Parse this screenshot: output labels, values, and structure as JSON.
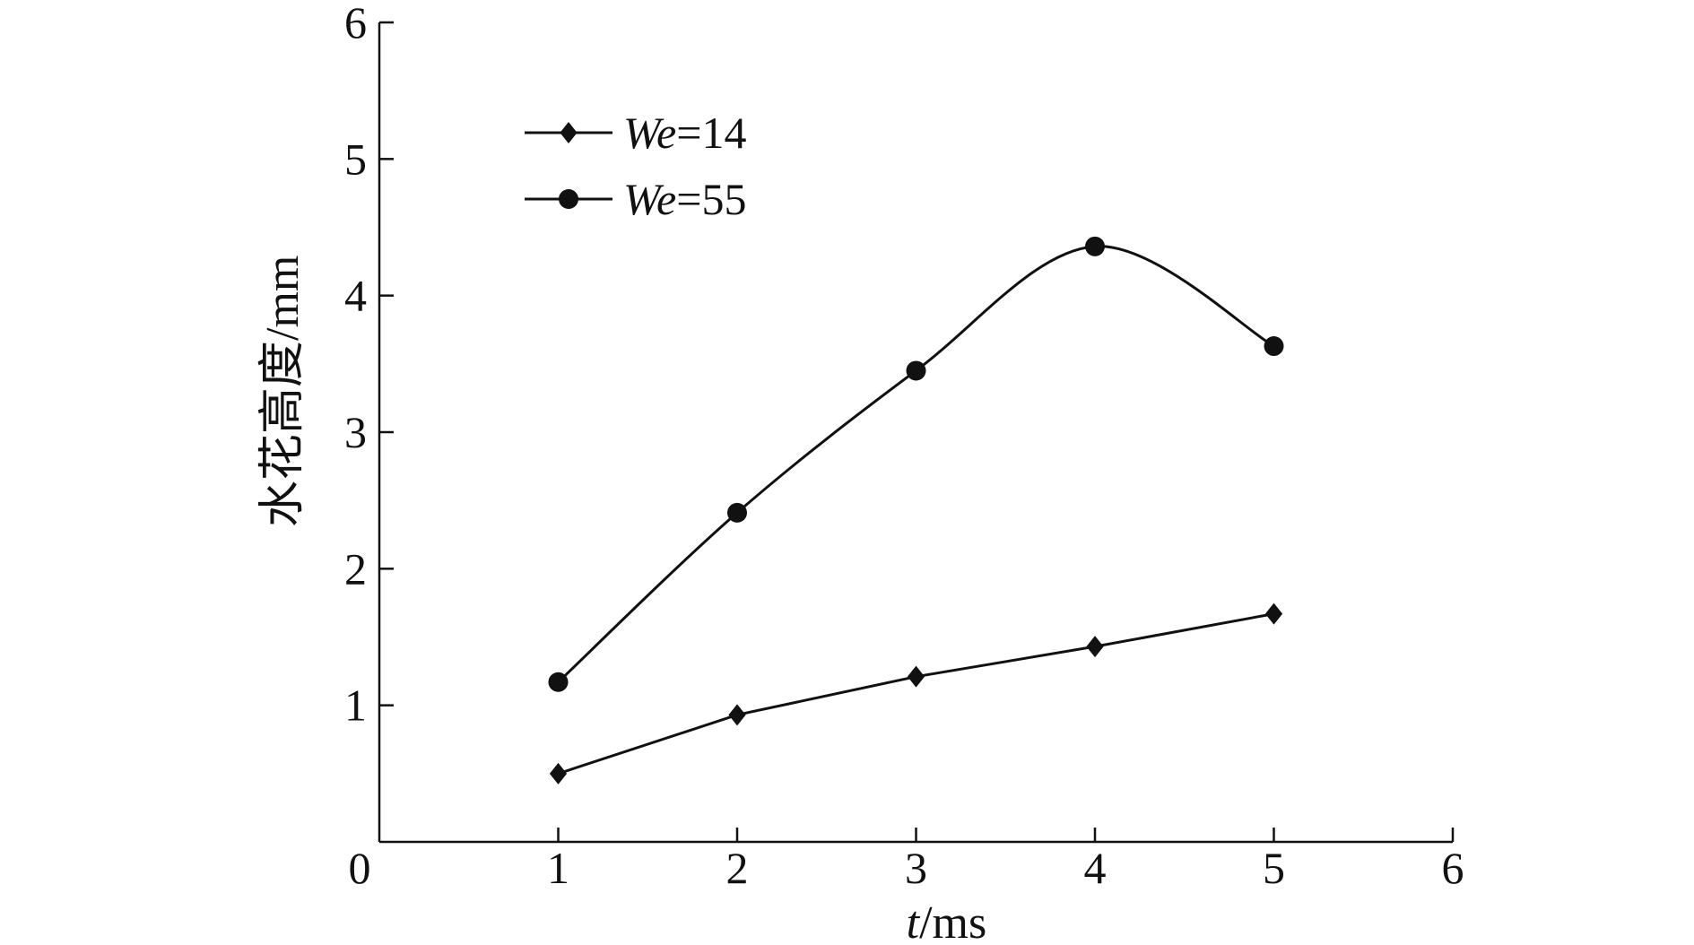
{
  "chart_data": {
    "type": "line",
    "title": "",
    "xlabel": {
      "italic": "t",
      "rest": "/ms"
    },
    "ylabel": "水花高度/mm",
    "xlim": [
      0,
      6
    ],
    "ylim": [
      0,
      6
    ],
    "x_ticks": [
      "0",
      "1",
      "2",
      "3",
      "4",
      "5",
      "6"
    ],
    "y_ticks": [
      "1",
      "2",
      "3",
      "4",
      "5",
      "6"
    ],
    "grid": false,
    "legend_position": "top-left",
    "x": [
      1,
      2,
      3,
      4,
      5
    ],
    "series": [
      {
        "name": {
          "italic": "We",
          "rest": "=14"
        },
        "marker": "diamond",
        "smooth": false,
        "values": [
          0.5,
          0.93,
          1.21,
          1.43,
          1.67
        ]
      },
      {
        "name": {
          "italic": "We",
          "rest": "=55"
        },
        "marker": "circle",
        "smooth": true,
        "values": [
          1.17,
          2.41,
          3.45,
          4.36,
          3.63
        ]
      }
    ],
    "colors": {
      "line": "#111111",
      "axis": "#111111"
    }
  }
}
